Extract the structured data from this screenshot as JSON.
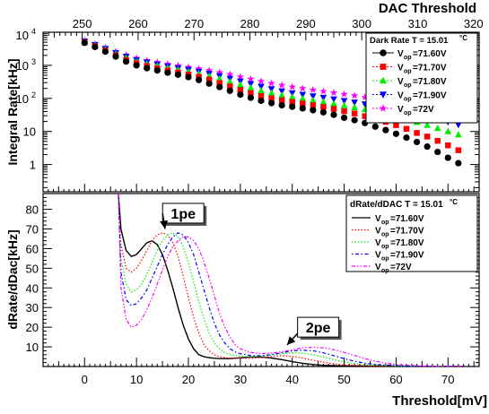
{
  "colors": {
    "s71_60": "#000000",
    "s71_70": "#ff0000",
    "s71_80": "#00ee00",
    "s71_90": "#0000ff",
    "s72_00": "#ff00ff"
  },
  "chart_data": [
    {
      "type": "scatter",
      "title": "",
      "ylabel": "Integral Rate[kHz]",
      "top_axis_label": "DAC Threshold",
      "top_axis_ticks": [
        "250",
        "260",
        "270",
        "280",
        "290",
        "300",
        "310",
        "320"
      ],
      "top_axis_range": [
        243,
        321
      ],
      "y_scale": "log",
      "ylim": [
        0.15,
        10000
      ],
      "y_tick_labels": [
        "1",
        "10",
        "10",
        "10"
      ],
      "y_tick_exponents": [
        "",
        "",
        "2",
        "3"
      ],
      "y_top_label": "10",
      "y_top_exp": "4",
      "xlim": [
        -8,
        76
      ],
      "legend_title": "Dark Rate T = 15.01",
      "legend_unit": "°C",
      "series": [
        {
          "name": "V",
          "sub": "op",
          "label": "=71.60V",
          "marker": "circle",
          "x": [
            0,
            2,
            4,
            6,
            8,
            10,
            12,
            14,
            16,
            18,
            20,
            22,
            24,
            26,
            28,
            30,
            32,
            34,
            36,
            38,
            40,
            42,
            44,
            46,
            48,
            50,
            52,
            54,
            56,
            58,
            60,
            62,
            64,
            66,
            68,
            70,
            72
          ],
          "y": [
            4800,
            3600,
            2600,
            1850,
            1300,
            1000,
            820,
            700,
            600,
            520,
            440,
            360,
            280,
            220,
            170,
            130,
            105,
            85,
            72,
            62,
            56,
            50,
            44,
            38,
            32,
            26,
            22,
            18,
            14,
            11,
            8.5,
            6.5,
            4.8,
            3.5,
            2.4,
            1.6,
            1.1
          ]
        },
        {
          "name": "V",
          "sub": "op",
          "label": "=71.70V",
          "marker": "square",
          "x": [
            0,
            2,
            4,
            6,
            8,
            10,
            12,
            14,
            16,
            18,
            20,
            22,
            24,
            26,
            28,
            30,
            32,
            34,
            36,
            38,
            40,
            42,
            44,
            46,
            48,
            50,
            52,
            54,
            56,
            58,
            60,
            62,
            64,
            66,
            68,
            70,
            72
          ],
          "y": [
            5000,
            3800,
            2800,
            2000,
            1450,
            1150,
            950,
            810,
            700,
            610,
            530,
            450,
            370,
            290,
            230,
            180,
            145,
            118,
            100,
            88,
            78,
            70,
            62,
            55,
            48,
            41,
            35,
            29,
            24,
            19.5,
            15.5,
            12,
            9,
            7,
            5.2,
            3.8,
            2.7
          ]
        },
        {
          "name": "V",
          "sub": "op",
          "label": "=71.80V",
          "marker": "triangle",
          "x": [
            0,
            2,
            4,
            6,
            8,
            10,
            12,
            14,
            16,
            18,
            20,
            22,
            24,
            26,
            28,
            30,
            32,
            34,
            36,
            38,
            40,
            42,
            44,
            46,
            48,
            50,
            52,
            54,
            56,
            58,
            60,
            62,
            64,
            66,
            68,
            70,
            72
          ],
          "y": [
            5200,
            4000,
            3000,
            2200,
            1650,
            1300,
            1100,
            960,
            830,
            730,
            640,
            560,
            470,
            390,
            320,
            260,
            210,
            172,
            145,
            125,
            110,
            98,
            87,
            78,
            69,
            61,
            53,
            46,
            40,
            34,
            28.5,
            23.5,
            19,
            15.5,
            12.5,
            10,
            8
          ]
        },
        {
          "name": "V",
          "sub": "op",
          "label": "=71.90V",
          "marker": "triangle-down",
          "x": [
            0,
            2,
            4,
            6,
            8,
            10,
            12,
            14,
            16,
            18,
            20,
            22,
            24,
            26,
            28,
            30,
            32,
            34,
            36,
            38,
            40,
            42,
            44,
            46,
            48,
            50,
            52,
            54,
            56,
            58,
            60,
            62,
            64,
            66,
            68,
            70,
            72
          ],
          "y": [
            5400,
            4200,
            3200,
            2400,
            1850,
            1450,
            1230,
            1070,
            940,
            830,
            740,
            650,
            560,
            480,
            400,
            330,
            275,
            228,
            192,
            166,
            146,
            130,
            117,
            106,
            95,
            85,
            76,
            67,
            59,
            52,
            45,
            39,
            33,
            28,
            23.5,
            19.5,
            16
          ]
        },
        {
          "name": "V",
          "sub": "op",
          "label": "=72V",
          "marker": "star",
          "x": [
            0,
            2,
            4,
            6,
            8,
            10,
            12,
            14,
            16,
            18,
            20,
            22,
            24,
            26,
            28,
            30,
            32,
            34,
            36,
            38,
            40,
            42,
            44,
            46,
            48,
            50,
            52,
            54,
            56,
            58,
            60,
            62,
            64,
            66,
            68,
            70,
            72
          ],
          "y": [
            5600,
            4400,
            3400,
            2600,
            2050,
            1650,
            1400,
            1230,
            1090,
            980,
            880,
            790,
            700,
            610,
            530,
            450,
            385,
            330,
            285,
            250,
            222,
            200,
            180,
            163,
            148,
            134,
            121,
            108,
            96,
            85,
            75,
            66,
            57,
            49,
            42,
            36,
            30.5
          ]
        }
      ]
    },
    {
      "type": "line",
      "title": "",
      "xlabel": "Threshold[mV]",
      "ylabel": "dRate/dDac[kHz]",
      "xlim": [
        -8,
        76
      ],
      "ylim": [
        0,
        88
      ],
      "x_ticks": [
        0,
        10,
        20,
        30,
        40,
        50,
        60,
        70
      ],
      "y_ticks": [
        10,
        20,
        30,
        40,
        50,
        60,
        70,
        80
      ],
      "legend_title": "dRate/dDAC T = 15.01",
      "legend_unit": "°C",
      "annotations": [
        {
          "text": "1pe",
          "x": 19,
          "y": 78,
          "arrow_to": [
            15.5,
            70
          ]
        },
        {
          "text": "2pe",
          "x": 45,
          "y": 20,
          "arrow_to": [
            39,
            11
          ]
        }
      ],
      "series": [
        {
          "name": "V",
          "sub": "op",
          "label": "=71.60V",
          "dash": "solid",
          "x": [
            6.5,
            7,
            8,
            9,
            10,
            11,
            12,
            13,
            14,
            15,
            16,
            17,
            18,
            19,
            20,
            21,
            22,
            23,
            24,
            25,
            26,
            28,
            30,
            32,
            34,
            36,
            38,
            40,
            42,
            44,
            46,
            50,
            55,
            60,
            65,
            70,
            73
          ],
          "y": [
            88,
            70,
            59,
            56,
            57,
            60,
            63,
            64,
            62,
            57,
            49,
            40,
            30,
            21,
            14,
            9,
            6,
            5,
            4.5,
            4.2,
            4,
            4,
            4.4,
            4.8,
            4.8,
            4.3,
            3.5,
            2.5,
            1.6,
            1,
            0.6,
            0.3,
            0.2,
            0.1,
            0.1,
            0.1,
            0.1
          ]
        },
        {
          "name": "V",
          "sub": "op",
          "label": "=71.70V",
          "dash": "dot",
          "x": [
            6.5,
            7,
            8,
            9,
            10,
            11,
            12,
            13,
            14,
            15,
            16,
            17,
            18,
            19,
            20,
            21,
            22,
            23,
            24,
            25,
            26,
            27,
            28,
            30,
            32,
            34,
            36,
            38,
            40,
            42,
            44,
            46,
            48,
            50,
            55,
            60,
            65,
            70,
            73
          ],
          "y": [
            88,
            62,
            50,
            48,
            50,
            54,
            59,
            64,
            67,
            68,
            67,
            63,
            56,
            46,
            35,
            25,
            17,
            11,
            8,
            6,
            5,
            4.5,
            4.3,
            4.2,
            4.2,
            4.5,
            5,
            5.5,
            5.2,
            4.3,
            3.2,
            2.2,
            1.4,
            0.8,
            0.3,
            0.2,
            0.1,
            0.1,
            0.1
          ]
        },
        {
          "name": "V",
          "sub": "op",
          "label": "=71.80V",
          "dash": "dot",
          "x": [
            6.5,
            7,
            8,
            9,
            10,
            11,
            12,
            13,
            14,
            15,
            16,
            17,
            18,
            19,
            20,
            21,
            22,
            23,
            24,
            25,
            26,
            27,
            28,
            30,
            32,
            34,
            36,
            38,
            40,
            42,
            44,
            46,
            48,
            50,
            52,
            55,
            60,
            65,
            70,
            73
          ],
          "y": [
            88,
            55,
            42,
            38,
            39,
            42,
            47,
            53,
            59,
            64,
            67,
            68,
            66,
            61,
            53,
            43,
            33,
            24,
            17,
            12,
            9,
            7,
            6,
            5.2,
            5,
            5.2,
            5.8,
            6.5,
            7,
            6.8,
            6,
            4.8,
            3.5,
            2.4,
            1.5,
            0.8,
            0.3,
            0.2,
            0.1,
            0.1
          ]
        },
        {
          "name": "V",
          "sub": "op",
          "label": "=71.90V",
          "dash": "dashdot",
          "x": [
            6.5,
            7,
            8,
            9,
            10,
            11,
            12,
            13,
            14,
            15,
            16,
            17,
            18,
            19,
            20,
            21,
            22,
            23,
            24,
            25,
            26,
            27,
            28,
            29,
            30,
            32,
            34,
            36,
            38,
            40,
            42,
            44,
            46,
            48,
            50,
            52,
            54,
            56,
            60,
            65,
            70,
            73
          ],
          "y": [
            88,
            48,
            34,
            31,
            32,
            35,
            39,
            45,
            51,
            57,
            62,
            66,
            68,
            67,
            63,
            57,
            48,
            39,
            30,
            22,
            16,
            12,
            9,
            7.5,
            6.5,
            5.6,
            5.5,
            6,
            7,
            8,
            8.3,
            8,
            7,
            5.5,
            4,
            2.7,
            1.7,
            1,
            0.4,
            0.2,
            0.1,
            0.1
          ]
        },
        {
          "name": "V",
          "sub": "op",
          "label": "=72V",
          "dash": "dashdotdot",
          "x": [
            6.5,
            7,
            8,
            9,
            10,
            11,
            12,
            13,
            14,
            15,
            16,
            17,
            18,
            19,
            20,
            21,
            22,
            23,
            24,
            25,
            26,
            27,
            28,
            29,
            30,
            31,
            32,
            34,
            36,
            38,
            40,
            42,
            44,
            46,
            48,
            50,
            52,
            54,
            56,
            58,
            60,
            65,
            70,
            73
          ],
          "y": [
            88,
            40,
            24,
            20,
            21,
            24,
            29,
            35,
            42,
            49,
            56,
            61,
            64,
            66,
            66,
            64,
            60,
            53,
            45,
            36,
            27,
            20,
            15,
            11,
            9,
            8,
            7.2,
            6.6,
            6.8,
            7.5,
            8.5,
            9.5,
            9.8,
            9.5,
            8.6,
            7.2,
            5.6,
            4,
            2.7,
            1.7,
            1,
            0.3,
            0.1,
            0.1
          ]
        }
      ]
    }
  ]
}
